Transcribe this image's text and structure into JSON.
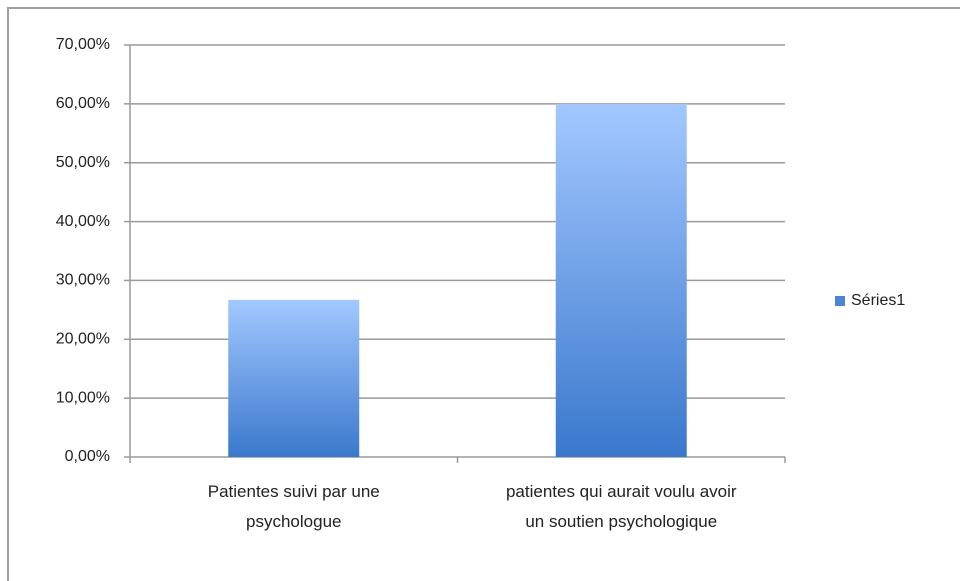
{
  "chart_data": {
    "type": "bar",
    "categories": [
      "Patientes suivi par une psychologue",
      "patientes qui aurait voulu avoir un soutien psychologique"
    ],
    "series": [
      {
        "name": "Séries1",
        "color": "#4a86d4",
        "values": [
          26.7,
          60
        ]
      }
    ],
    "ylim": [
      0,
      70
    ],
    "yticks": [
      {
        "value": 0,
        "label": "0,00%"
      },
      {
        "value": 10,
        "label": "10,00%"
      },
      {
        "value": 20,
        "label": "20,00%"
      },
      {
        "value": 30,
        "label": "30,00%"
      },
      {
        "value": 40,
        "label": "40,00%"
      },
      {
        "value": 50,
        "label": "50,00%"
      },
      {
        "value": 60,
        "label": "60,00%"
      },
      {
        "value": 70,
        "label": "70,00%"
      }
    ],
    "grid": true,
    "legend": "right"
  }
}
